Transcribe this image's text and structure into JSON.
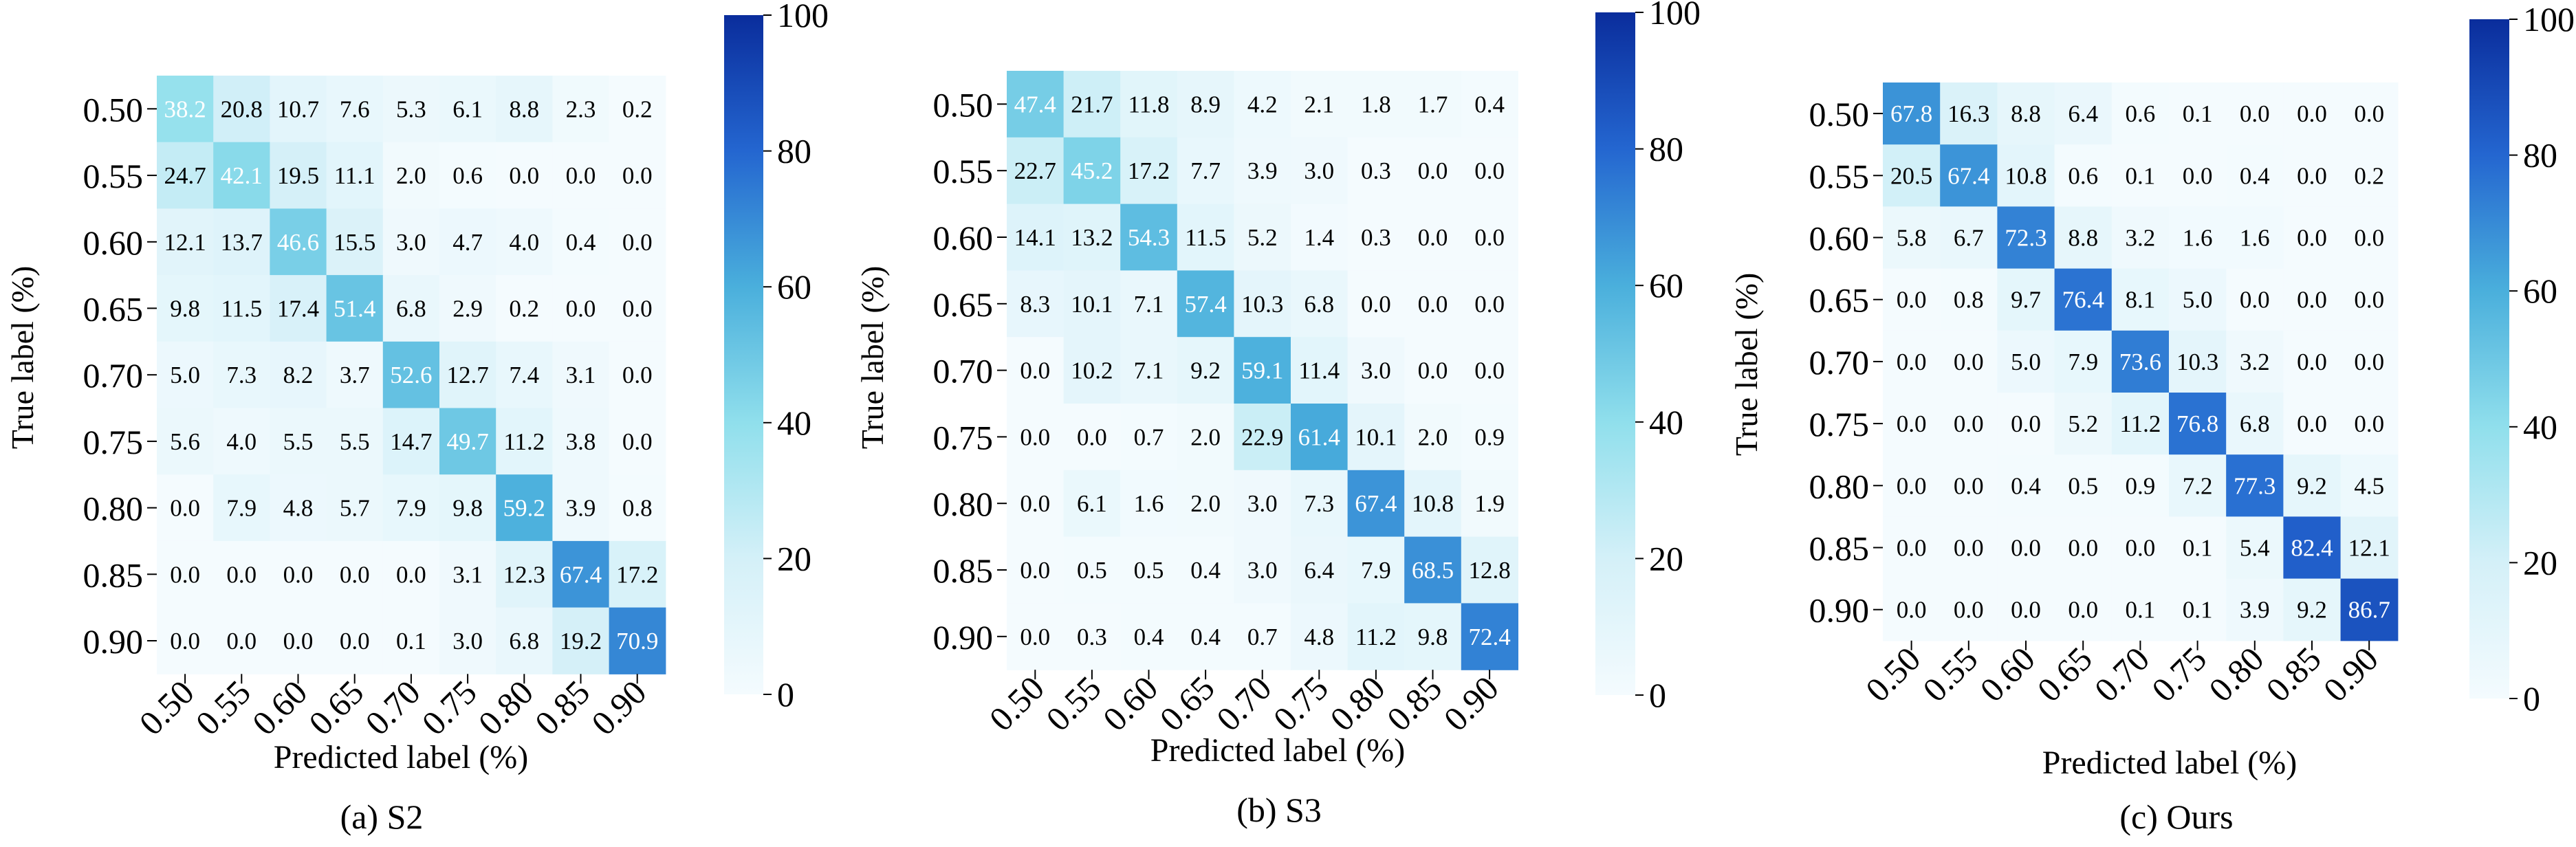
{
  "colors": {
    "low": "#f4fbfe",
    "mid": "#5ccfe0",
    "high": "#0a2d9c",
    "text_dark": "#000000",
    "text_light": "#ffffff"
  },
  "chart_data": [
    {
      "type": "heatmap",
      "caption": "(a) S2",
      "xlabel": "Predicted label (%)",
      "ylabel": "True label (%)",
      "x_ticks": [
        "0.50",
        "0.55",
        "0.60",
        "0.65",
        "0.70",
        "0.75",
        "0.80",
        "0.85",
        "0.90"
      ],
      "y_ticks": [
        "0.50",
        "0.55",
        "0.60",
        "0.65",
        "0.70",
        "0.75",
        "0.80",
        "0.85",
        "0.90"
      ],
      "colorbar": {
        "min": 0,
        "max": 100,
        "ticks": [
          "0",
          "20",
          "40",
          "60",
          "80",
          "100"
        ]
      },
      "values": [
        [
          38.2,
          20.8,
          10.7,
          7.6,
          5.3,
          6.1,
          8.8,
          2.3,
          0.2
        ],
        [
          24.7,
          42.1,
          19.5,
          11.1,
          2.0,
          0.6,
          0.0,
          0.0,
          0.0
        ],
        [
          12.1,
          13.7,
          46.6,
          15.5,
          3.0,
          4.7,
          4.0,
          0.4,
          0.0
        ],
        [
          9.8,
          11.5,
          17.4,
          51.4,
          6.8,
          2.9,
          0.2,
          0.0,
          0.0
        ],
        [
          5.0,
          7.3,
          8.2,
          3.7,
          52.6,
          12.7,
          7.4,
          3.1,
          0.0
        ],
        [
          5.6,
          4.0,
          5.5,
          5.5,
          14.7,
          49.7,
          11.2,
          3.8,
          0.0
        ],
        [
          0.0,
          7.9,
          4.8,
          5.7,
          7.9,
          9.8,
          59.2,
          3.9,
          0.8
        ],
        [
          0.0,
          0.0,
          0.0,
          0.0,
          0.0,
          3.1,
          12.3,
          67.4,
          17.2
        ],
        [
          0.0,
          0.0,
          0.0,
          0.0,
          0.1,
          3.0,
          6.8,
          19.2,
          70.9
        ]
      ]
    },
    {
      "type": "heatmap",
      "caption": "(b) S3",
      "xlabel": "Predicted label (%)",
      "ylabel": "True label (%)",
      "x_ticks": [
        "0.50",
        "0.55",
        "0.60",
        "0.65",
        "0.70",
        "0.75",
        "0.80",
        "0.85",
        "0.90"
      ],
      "y_ticks": [
        "0.50",
        "0.55",
        "0.60",
        "0.65",
        "0.70",
        "0.75",
        "0.80",
        "0.85",
        "0.90"
      ],
      "colorbar": {
        "min": 0,
        "max": 100,
        "ticks": [
          "0",
          "20",
          "40",
          "60",
          "80",
          "100"
        ]
      },
      "values": [
        [
          47.4,
          21.7,
          11.8,
          8.9,
          4.2,
          2.1,
          1.8,
          1.7,
          0.4
        ],
        [
          22.7,
          45.2,
          17.2,
          7.7,
          3.9,
          3.0,
          0.3,
          0.0,
          0.0
        ],
        [
          14.1,
          13.2,
          54.3,
          11.5,
          5.2,
          1.4,
          0.3,
          0.0,
          0.0
        ],
        [
          8.3,
          10.1,
          7.1,
          57.4,
          10.3,
          6.8,
          0.0,
          0.0,
          0.0
        ],
        [
          0.0,
          10.2,
          7.1,
          9.2,
          59.1,
          11.4,
          3.0,
          0.0,
          0.0
        ],
        [
          0.0,
          0.0,
          0.7,
          2.0,
          22.9,
          61.4,
          10.1,
          2.0,
          0.9
        ],
        [
          0.0,
          6.1,
          1.6,
          2.0,
          3.0,
          7.3,
          67.4,
          10.8,
          1.9
        ],
        [
          0.0,
          0.5,
          0.5,
          0.4,
          3.0,
          6.4,
          7.9,
          68.5,
          12.8
        ],
        [
          0.0,
          0.3,
          0.4,
          0.4,
          0.7,
          4.8,
          11.2,
          9.8,
          72.4
        ]
      ]
    },
    {
      "type": "heatmap",
      "caption": "(c) Ours",
      "xlabel": "Predicted label (%)",
      "ylabel": "True label (%)",
      "x_ticks": [
        "0.50",
        "0.55",
        "0.60",
        "0.65",
        "0.70",
        "0.75",
        "0.80",
        "0.85",
        "0.90"
      ],
      "y_ticks": [
        "0.50",
        "0.55",
        "0.60",
        "0.65",
        "0.70",
        "0.75",
        "0.80",
        "0.85",
        "0.90"
      ],
      "colorbar": {
        "min": 0,
        "max": 100,
        "ticks": [
          "0",
          "20",
          "40",
          "60",
          "80",
          "100"
        ]
      },
      "values": [
        [
          67.8,
          16.3,
          8.8,
          6.4,
          0.6,
          0.1,
          0.0,
          0.0,
          0.0
        ],
        [
          20.5,
          67.4,
          10.8,
          0.6,
          0.1,
          0.0,
          0.4,
          0.0,
          0.2
        ],
        [
          5.8,
          6.7,
          72.3,
          8.8,
          3.2,
          1.6,
          1.6,
          0.0,
          0.0
        ],
        [
          0.0,
          0.8,
          9.7,
          76.4,
          8.1,
          5.0,
          0.0,
          0.0,
          0.0
        ],
        [
          0.0,
          0.0,
          5.0,
          7.9,
          73.6,
          10.3,
          3.2,
          0.0,
          0.0
        ],
        [
          0.0,
          0.0,
          0.0,
          5.2,
          11.2,
          76.8,
          6.8,
          0.0,
          0.0
        ],
        [
          0.0,
          0.0,
          0.4,
          0.5,
          0.9,
          7.2,
          77.3,
          9.2,
          4.5
        ],
        [
          0.0,
          0.0,
          0.0,
          0.0,
          0.0,
          0.1,
          5.4,
          82.4,
          12.1
        ],
        [
          0.0,
          0.0,
          0.0,
          0.0,
          0.1,
          0.1,
          3.9,
          9.2,
          86.7
        ]
      ]
    }
  ]
}
